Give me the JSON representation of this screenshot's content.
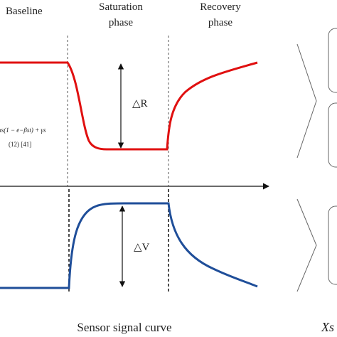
{
  "labels": {
    "baseline": "Baseline",
    "saturation": [
      "Saturation",
      "phase"
    ],
    "recovery": [
      "Recovery",
      "phase"
    ],
    "delta_r": "△R",
    "delta_v": "△V",
    "formula": "αs(1 − e−βst) + γs",
    "reference": "(12) [41]",
    "caption": "Sensor signal curve",
    "variable": "Xs"
  }
}
